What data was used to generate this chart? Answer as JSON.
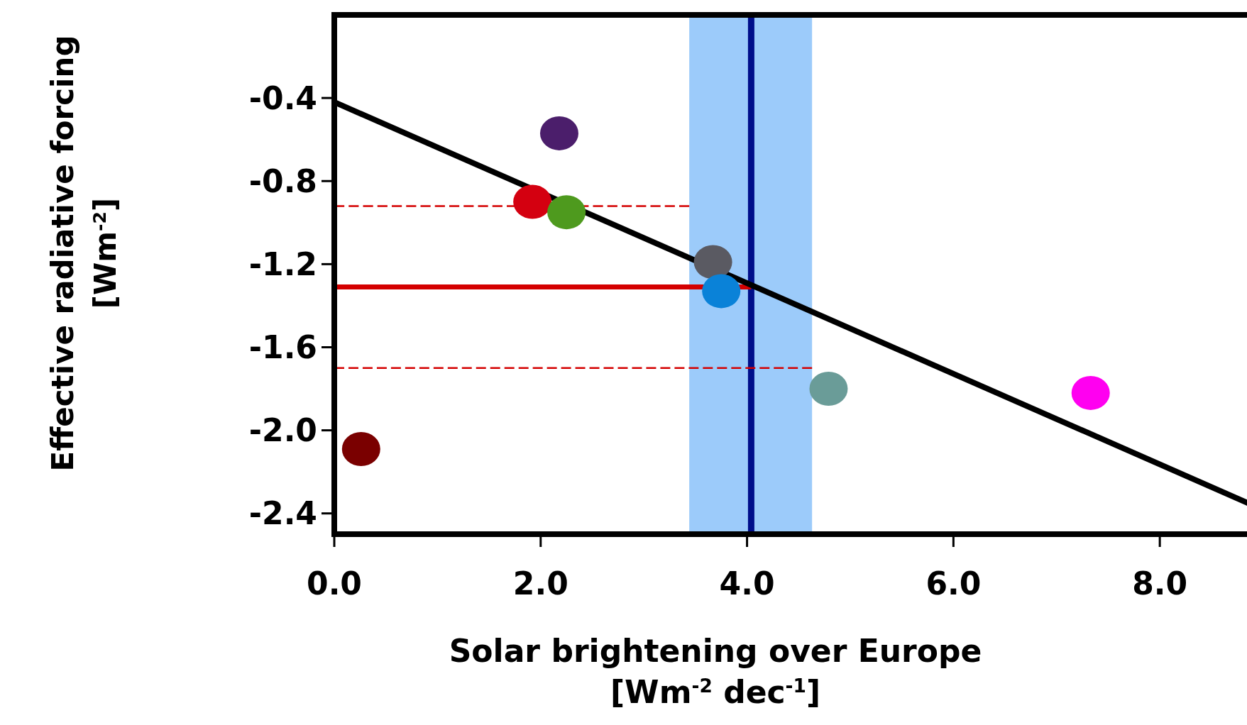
{
  "chart_data": {
    "type": "scatter",
    "xlabel": "Solar brightening over Europe\n[Wm$^{-2}$ dec$^{-1}$]",
    "ylabel": "Effective radiative forcing\n[Wm$^{-2}$]",
    "xlim": [
      0,
      8.9
    ],
    "ylim": [
      -2.5,
      0
    ],
    "xticks": [
      {
        "value": 0,
        "label": "0.0"
      },
      {
        "value": 2,
        "label": "2.0"
      },
      {
        "value": 4,
        "label": "4.0"
      },
      {
        "value": 6,
        "label": "6.0"
      },
      {
        "value": 8,
        "label": "8.0"
      }
    ],
    "yticks": [
      {
        "value": -0.4,
        "label": "-0.4"
      },
      {
        "value": -0.8,
        "label": "-0.8"
      },
      {
        "value": -1.2,
        "label": "-1.2"
      },
      {
        "value": -1.6,
        "label": "-1.6"
      },
      {
        "value": -2.0,
        "label": "-2.0"
      },
      {
        "value": -2.4,
        "label": "-2.4"
      }
    ],
    "grid": false,
    "marker": "circle",
    "bands": [
      {
        "axis": "x",
        "from": 3.44,
        "to": 4.63,
        "color": "#9ccbfa"
      }
    ],
    "ref_lines": [
      {
        "axis": "x",
        "value": 4.04,
        "color": "#000e8a",
        "line_style": "solid"
      }
    ],
    "series": [
      {
        "type": "line",
        "x": [
          0,
          4.04
        ],
        "values": [
          -1.31,
          -1.31
        ],
        "color": "#d40000",
        "line_style": "solid",
        "marker": "none"
      },
      {
        "type": "line",
        "x": [
          0,
          3.44
        ],
        "values": [
          -0.92,
          -0.92
        ],
        "color": "#d40000",
        "line_style": "dashed",
        "marker": "none"
      },
      {
        "type": "line",
        "x": [
          0,
          4.63
        ],
        "values": [
          -1.7,
          -1.7
        ],
        "color": "#d40000",
        "line_style": "dashed",
        "marker": "none"
      },
      {
        "type": "line",
        "x": [
          0,
          8.9
        ],
        "values": [
          -0.42,
          -2.36
        ],
        "color": "#000000",
        "line_style": "solid",
        "marker": "none"
      },
      {
        "x": [
          2.18,
          1.92,
          2.25,
          3.67,
          3.75,
          4.79,
          7.33,
          0.26
        ],
        "values": [
          -0.57,
          -0.9,
          -0.95,
          -1.19,
          -1.33,
          -1.8,
          -1.82,
          -2.09
        ],
        "colors": [
          "#4b1e6b",
          "#d40010",
          "#4e9a1e",
          "#5a5a62",
          "#0a82d8",
          "#6a9c98",
          "#ff00f0",
          "#7a0000"
        ]
      }
    ]
  }
}
